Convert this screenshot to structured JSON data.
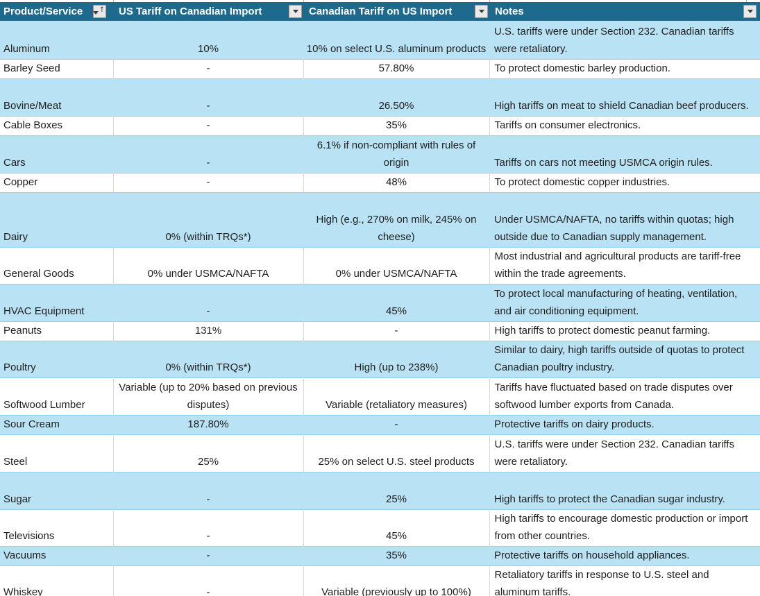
{
  "table": {
    "columns": [
      {
        "label": "Product/Service",
        "filter_icon": "filter-sort-ascending-icon"
      },
      {
        "label": "US Tariff on Canadian Import",
        "filter_icon": "filter-dropdown-icon"
      },
      {
        "label": "Canadian Tariff on US Import",
        "filter_icon": "filter-dropdown-icon"
      },
      {
        "label": "Notes",
        "filter_icon": "filter-dropdown-icon"
      }
    ],
    "rows": [
      {
        "product": "Aluminum",
        "us_tariff": "10%",
        "ca_tariff": "10% on select U.S. aluminum products",
        "notes": "U.S. tariffs were under Section 232. Canadian tariffs were retaliatory."
      },
      {
        "product": "Barley Seed",
        "us_tariff": "-",
        "ca_tariff": "57.80%",
        "notes": "To protect domestic barley production."
      },
      {
        "product": "Bovine/Meat",
        "us_tariff": "-",
        "ca_tariff": "26.50%",
        "notes": "High tariffs on meat to shield Canadian beef producers."
      },
      {
        "product": "Cable Boxes",
        "us_tariff": "-",
        "ca_tariff": "35%",
        "notes": "Tariffs on consumer electronics."
      },
      {
        "product": "Cars",
        "us_tariff": "-",
        "ca_tariff": "6.1% if non-compliant with rules of origin",
        "notes": "Tariffs on cars not meeting USMCA origin rules."
      },
      {
        "product": "Copper",
        "us_tariff": "-",
        "ca_tariff": "48%",
        "notes": "To protect domestic copper industries."
      },
      {
        "product": "Dairy",
        "us_tariff": "0% (within TRQs*)",
        "ca_tariff": "High (e.g., 270% on milk, 245% on cheese)",
        "notes": "Under USMCA/NAFTA, no tariffs within quotas; high outside due to Canadian supply management."
      },
      {
        "product": "General Goods",
        "us_tariff": "0% under USMCA/NAFTA",
        "ca_tariff": "0% under USMCA/NAFTA",
        "notes": "Most industrial and agricultural products are tariff-free within the trade agreements."
      },
      {
        "product": "HVAC Equipment",
        "us_tariff": "-",
        "ca_tariff": "45%",
        "notes": "To protect local manufacturing of heating, ventilation, and air conditioning equipment."
      },
      {
        "product": "Peanuts",
        "us_tariff": "131%",
        "ca_tariff": "-",
        "notes": "High tariffs to protect domestic peanut farming."
      },
      {
        "product": "Poultry",
        "us_tariff": "0% (within TRQs*)",
        "ca_tariff": "High (up to 238%)",
        "notes": "Similar to dairy, high tariffs outside of quotas to protect Canadian poultry industry."
      },
      {
        "product": "Softwood Lumber",
        "us_tariff": "Variable (up to 20% based on previous disputes)",
        "ca_tariff": "Variable (retaliatory measures)",
        "notes": "Tariffs have fluctuated based on trade disputes over softwood lumber exports from Canada."
      },
      {
        "product": "Sour Cream",
        "us_tariff": "187.80%",
        "ca_tariff": "-",
        "notes": "Protective tariffs on dairy products."
      },
      {
        "product": "Steel",
        "us_tariff": "25%",
        "ca_tariff": "25% on select U.S. steel products",
        "notes": "U.S. tariffs were under Section 232. Canadian tariffs were retaliatory."
      },
      {
        "product": "Sugar",
        "us_tariff": "-",
        "ca_tariff": "25%",
        "notes": "High tariffs to protect the Canadian sugar industry."
      },
      {
        "product": "Televisions",
        "us_tariff": "-",
        "ca_tariff": "45%",
        "notes": "High tariffs to encourage domestic production or import from other countries."
      },
      {
        "product": "Vacuums",
        "us_tariff": "-",
        "ca_tariff": "35%",
        "notes": "Protective tariffs on household appliances."
      },
      {
        "product": "Whiskey",
        "us_tariff": "-",
        "ca_tariff": "Variable (previously up to 100%)",
        "notes": "Retaliatory tariffs in response to U.S. steel and aluminum tariffs."
      }
    ]
  },
  "colors": {
    "header_bg": "#1e6a8e",
    "header_text": "#ffffff",
    "band_blue": "#b9e2f4",
    "band_white": "#ffffff",
    "row_border": "#8fd1ec",
    "gridline_gray": "#d9d9d9",
    "cell_text": "#1e1e1e"
  }
}
